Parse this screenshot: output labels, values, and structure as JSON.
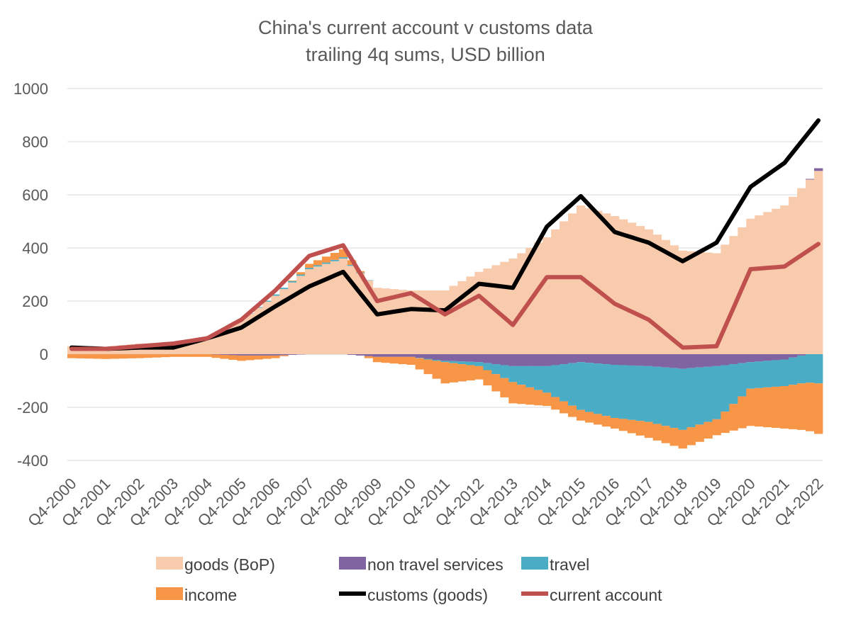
{
  "chart_data": {
    "type": "bar",
    "title": "China's current account v customs data",
    "subtitle": "trailing 4q sums, USD billion",
    "xlabel": "",
    "ylabel": "",
    "ylim": [
      -400,
      1000
    ],
    "y_ticks": [
      1000,
      800,
      600,
      400,
      200,
      0,
      -200,
      -400
    ],
    "grid": true,
    "legend_placement": "bottom",
    "x_tick_labels": [
      "Q4-2000",
      "Q4-2001",
      "Q4-2002",
      "Q4-2003",
      "Q4-2004",
      "Q4-2005",
      "Q4-2006",
      "Q4-2007",
      "Q4-2008",
      "Q4-2009",
      "Q4-2010",
      "Q4-2011",
      "Q4-2012",
      "Q4-2013",
      "Q4-2014",
      "Q4-2015",
      "Q4-2016",
      "Q4-2017",
      "Q4-2018",
      "Q4-2019",
      "Q4-2020",
      "Q4-2021",
      "Q4-2022"
    ],
    "x": [
      2000,
      2001,
      2002,
      2003,
      2004,
      2005,
      2006,
      2007,
      2008,
      2009,
      2010,
      2011,
      2012,
      2013,
      2014,
      2015,
      2016,
      2017,
      2018,
      2019,
      2020,
      2021,
      2022
    ],
    "series": [
      {
        "name": "goods (BoP)",
        "kind": "bar",
        "color": "#F8CBAD",
        "values": [
          30,
          28,
          40,
          40,
          55,
          130,
          220,
          320,
          360,
          250,
          240,
          240,
          310,
          360,
          440,
          560,
          520,
          470,
          390,
          380,
          510,
          560,
          690
        ]
      },
      {
        "name": "non travel services",
        "kind": "bar",
        "color": "#8064A2",
        "values": [
          0,
          0,
          0,
          0,
          0,
          -5,
          -5,
          0,
          0,
          -10,
          -10,
          -25,
          -30,
          -45,
          -45,
          -30,
          -40,
          -45,
          -55,
          -45,
          -30,
          -20,
          10
        ]
      },
      {
        "name": "travel",
        "kind": "bar",
        "color": "#4BACC6",
        "values": [
          0,
          0,
          0,
          0,
          0,
          0,
          5,
          5,
          5,
          0,
          0,
          -5,
          -15,
          -60,
          -100,
          -180,
          -200,
          -210,
          -230,
          -200,
          -100,
          -100,
          -110
        ]
      },
      {
        "name": "income",
        "kind": "bar",
        "color": "#F79646",
        "values": [
          -15,
          -18,
          -15,
          -10,
          -10,
          -20,
          -10,
          15,
          30,
          -20,
          -30,
          -80,
          -50,
          -80,
          -50,
          -40,
          -40,
          -60,
          -70,
          -60,
          -140,
          -160,
          -190
        ]
      },
      {
        "name": "customs (goods)",
        "kind": "line",
        "color": "#000000",
        "values": [
          25,
          20,
          25,
          25,
          60,
          100,
          180,
          255,
          310,
          150,
          170,
          165,
          265,
          250,
          480,
          595,
          460,
          420,
          350,
          420,
          630,
          720,
          880
        ]
      },
      {
        "name": "current account",
        "kind": "line",
        "color": "#C0504D",
        "values": [
          20,
          20,
          30,
          40,
          60,
          130,
          240,
          370,
          410,
          200,
          230,
          150,
          220,
          110,
          290,
          290,
          190,
          130,
          25,
          30,
          320,
          330,
          415
        ]
      }
    ]
  }
}
